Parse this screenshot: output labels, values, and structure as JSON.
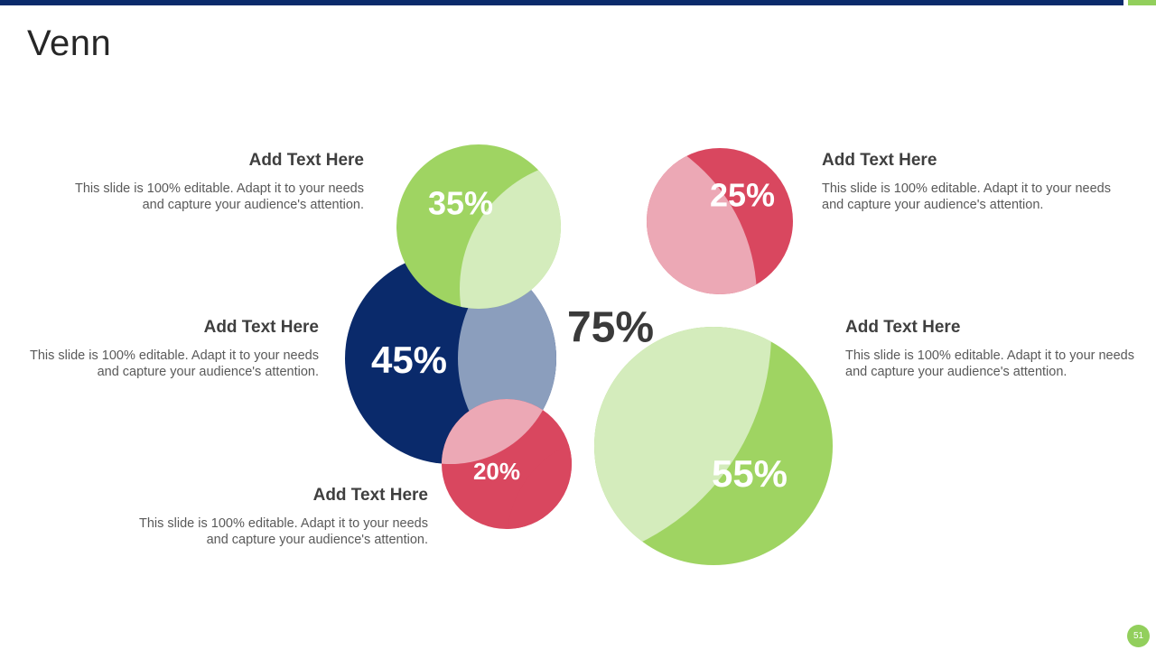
{
  "title": "Venn",
  "page_number": "51",
  "center_value": "75%",
  "colors": {
    "navy": "#0a2a6b",
    "green": "#9fd462",
    "green_light": "#d4ecbc",
    "red": "#d9475f",
    "pink": "#eca8b5",
    "slate": "#8b9ebd"
  },
  "circles": [
    {
      "name": "navy-circle",
      "value": "45%",
      "color": "navy"
    },
    {
      "name": "top-green-circle",
      "value": "35%",
      "color": "green"
    },
    {
      "name": "small-red-circle",
      "value": "20%",
      "color": "red"
    },
    {
      "name": "top-right-red-circle",
      "value": "25%",
      "color": "red"
    },
    {
      "name": "large-green-circle",
      "value": "55%",
      "color": "green"
    }
  ],
  "text_blocks": [
    {
      "heading": "Add Text Here",
      "body": "This slide is 100% editable. Adapt it to your needs and capture your audience's attention."
    },
    {
      "heading": "Add Text Here",
      "body": "This slide is 100% editable. Adapt it to your needs and capture your audience's attention."
    },
    {
      "heading": "Add Text Here",
      "body": "This slide is 100% editable. Adapt it to your needs and capture your audience's attention."
    },
    {
      "heading": "Add Text Here",
      "body": "This slide is 100% editable. Adapt it to your needs and capture your audience's attention."
    },
    {
      "heading": "Add Text Here",
      "body": "This slide is 100% editable. Adapt it to your needs and capture your audience's attention."
    }
  ]
}
